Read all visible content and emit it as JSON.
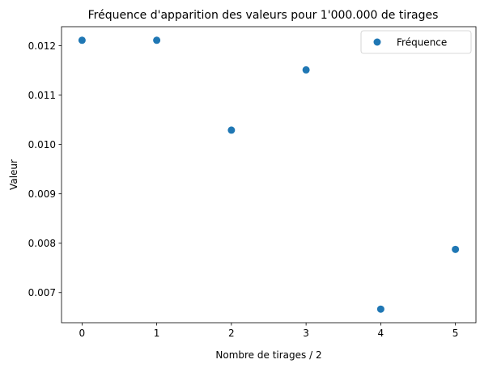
{
  "chart_data": {
    "type": "scatter",
    "title": "Fréquence d'apparition des valeurs pour 1'000.000 de tirages",
    "xlabel": "Nombre de tirages / 2",
    "ylabel": "Valeur",
    "x": [
      0,
      1,
      2,
      3,
      4,
      5
    ],
    "series": [
      {
        "name": "Fréquence",
        "color": "#1f77b4",
        "values": [
          0.01211,
          0.01211,
          0.01029,
          0.01151,
          0.006665,
          0.007875
        ]
      }
    ],
    "xlim": [
      -0.275,
      5.275
    ],
    "ylim": [
      0.00639,
      0.012385
    ],
    "xticks": [
      0,
      1,
      2,
      3,
      4,
      5
    ],
    "xtick_labels": [
      "0",
      "1",
      "2",
      "3",
      "4",
      "5"
    ],
    "yticks": [
      0.007,
      0.008,
      0.009,
      0.01,
      0.011,
      0.012
    ],
    "ytick_labels": [
      "0.007",
      "0.008",
      "0.009",
      "0.010",
      "0.011",
      "0.012"
    ],
    "grid": false,
    "legend_position": "upper right"
  }
}
